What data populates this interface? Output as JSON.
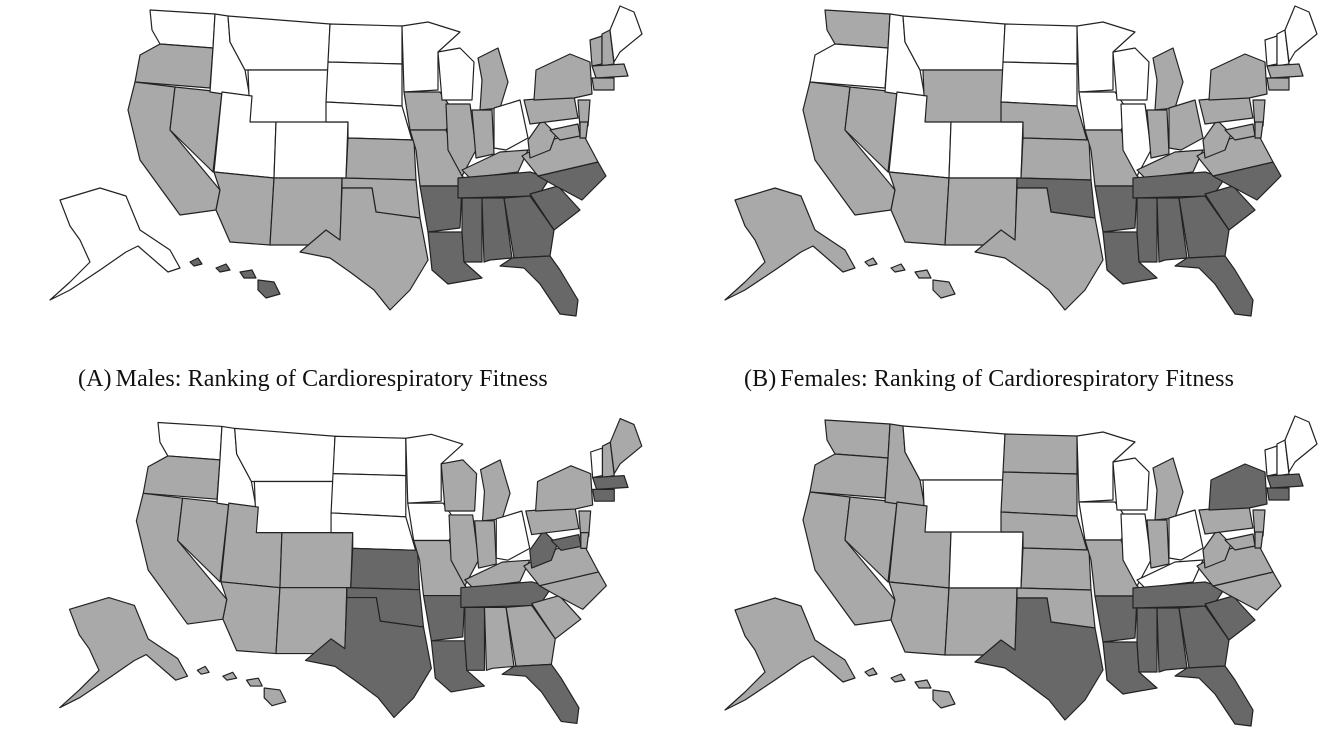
{
  "panels": [
    {
      "tag": "(A)",
      "caption": "Males: Ranking of Cardiorespiratory Fitness",
      "alaska": "white",
      "hawaii": "dark",
      "states": {
        "WA": "white",
        "OR": "light",
        "CA": "light",
        "NV": "light",
        "ID": "white",
        "MT": "white",
        "WY": "white",
        "UT": "white",
        "CO": "white",
        "AZ": "light",
        "NM": "light",
        "ND": "white",
        "SD": "white",
        "NE": "white",
        "KS": "light",
        "OK": "light",
        "TX": "light",
        "MN": "white",
        "IA": "light",
        "MO": "light",
        "AR": "dark",
        "LA": "dark",
        "WI": "white",
        "IL": "light",
        "MI": "light",
        "IN": "light",
        "OH": "white",
        "KY": "light",
        "TN": "dark",
        "MS": "dark",
        "AL": "dark",
        "GA": "dark",
        "FL": "dark",
        "SC": "dark",
        "NC": "dark",
        "VA": "light",
        "WV": "light",
        "PA": "light",
        "NY": "light",
        "VT": "light",
        "NH": "light",
        "ME": "white",
        "MA": "light",
        "NJ": "light",
        "MD": "light",
        "DE": "light",
        "CT": "light"
      }
    },
    {
      "tag": "(B)",
      "caption": "Females: Ranking of Cardiorespiratory Fitness",
      "alaska": "light",
      "hawaii": "light",
      "states": {
        "WA": "light",
        "OR": "white",
        "CA": "light",
        "NV": "light",
        "ID": "white",
        "MT": "white",
        "WY": "light",
        "UT": "white",
        "CO": "white",
        "AZ": "light",
        "NM": "light",
        "ND": "white",
        "SD": "white",
        "NE": "light",
        "KS": "light",
        "OK": "dark",
        "TX": "light",
        "MN": "white",
        "IA": "white",
        "MO": "light",
        "AR": "dark",
        "LA": "dark",
        "WI": "white",
        "IL": "white",
        "MI": "light",
        "IN": "light",
        "OH": "light",
        "KY": "light",
        "TN": "dark",
        "MS": "dark",
        "AL": "dark",
        "GA": "dark",
        "FL": "dark",
        "SC": "dark",
        "NC": "dark",
        "VA": "light",
        "WV": "light",
        "PA": "light",
        "NY": "light",
        "VT": "white",
        "NH": "white",
        "ME": "white",
        "MA": "light",
        "NJ": "light",
        "MD": "light",
        "DE": "light",
        "CT": "light"
      }
    },
    {
      "tag": "",
      "caption": "",
      "alaska": "light",
      "hawaii": "light",
      "states": {
        "WA": "white",
        "OR": "light",
        "CA": "light",
        "NV": "light",
        "ID": "white",
        "MT": "white",
        "WY": "white",
        "UT": "light",
        "CO": "light",
        "AZ": "light",
        "NM": "light",
        "ND": "white",
        "SD": "white",
        "NE": "white",
        "KS": "dark",
        "OK": "dark",
        "TX": "dark",
        "MN": "white",
        "IA": "white",
        "MO": "light",
        "AR": "dark",
        "LA": "dark",
        "WI": "light",
        "IL": "light",
        "MI": "light",
        "IN": "light",
        "OH": "white",
        "KY": "light",
        "TN": "dark",
        "MS": "dark",
        "AL": "light",
        "GA": "light",
        "FL": "dark",
        "SC": "light",
        "NC": "light",
        "VA": "light",
        "WV": "dark",
        "PA": "light",
        "NY": "light",
        "VT": "white",
        "NH": "light",
        "ME": "light",
        "MA": "dark",
        "NJ": "light",
        "MD": "dark",
        "DE": "light",
        "CT": "dark"
      }
    },
    {
      "tag": "",
      "caption": "",
      "alaska": "light",
      "hawaii": "light",
      "states": {
        "WA": "light",
        "OR": "light",
        "CA": "light",
        "NV": "light",
        "ID": "light",
        "MT": "white",
        "WY": "white",
        "UT": "light",
        "CO": "white",
        "AZ": "light",
        "NM": "light",
        "ND": "light",
        "SD": "light",
        "NE": "light",
        "KS": "light",
        "OK": "light",
        "TX": "dark",
        "MN": "white",
        "IA": "white",
        "MO": "light",
        "AR": "dark",
        "LA": "dark",
        "WI": "white",
        "IL": "white",
        "MI": "light",
        "IN": "light",
        "OH": "white",
        "KY": "white",
        "TN": "dark",
        "MS": "dark",
        "AL": "dark",
        "GA": "dark",
        "FL": "dark",
        "SC": "dark",
        "NC": "light",
        "VA": "light",
        "WV": "light",
        "PA": "light",
        "NY": "dark",
        "VT": "white",
        "NH": "white",
        "ME": "white",
        "MA": "dark",
        "NJ": "light",
        "MD": "light",
        "DE": "light",
        "CT": "dark"
      }
    }
  ]
}
